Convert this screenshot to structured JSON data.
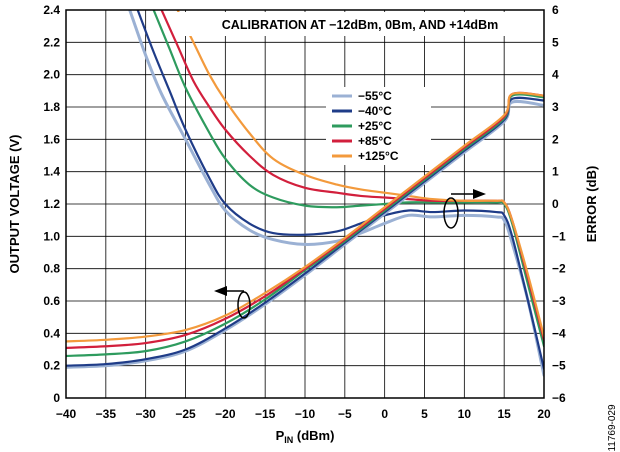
{
  "chart_data": {
    "type": "line",
    "title": "CALIBRATION AT −12dBm, 0Bm, AND +14dBm",
    "figure_id": "11769-029",
    "xlabel_main": "P",
    "xlabel_sub": "IN",
    "xlabel_unit": " (dBm)",
    "ylabel_left": "OUTPUT VOLTAGE (V)",
    "ylabel_right": "ERROR (dB)",
    "xlim": [
      -40,
      20
    ],
    "ylim_left": [
      0,
      2.4
    ],
    "ylim_right": [
      -6,
      6
    ],
    "xticks": [
      -40,
      -35,
      -30,
      -25,
      -20,
      -15,
      -10,
      -5,
      0,
      5,
      10,
      15,
      20
    ],
    "xtick_labels": [
      "−40",
      "−35",
      "−30",
      "−25",
      "−20",
      "−15",
      "−10",
      "−5",
      "0",
      "5",
      "10",
      "15",
      "20"
    ],
    "yticks_left": [
      0,
      0.2,
      0.4,
      0.6,
      0.8,
      1.0,
      1.2,
      1.4,
      1.6,
      1.8,
      2.0,
      2.2,
      2.4
    ],
    "ytick_left_labels": [
      "0",
      "0.2",
      "0.4",
      "0.6",
      "0.8",
      "1.0",
      "1.2",
      "1.4",
      "1.6",
      "1.8",
      "2.0",
      "2.2",
      "2.4"
    ],
    "yticks_right": [
      -6,
      -5,
      -4,
      -3,
      -2,
      -1,
      0,
      1,
      2,
      3,
      4,
      5,
      6
    ],
    "ytick_right_labels": [
      "−6",
      "−5",
      "−4",
      "−3",
      "−2",
      "−1",
      "0",
      "1",
      "2",
      "3",
      "4",
      "5",
      "6"
    ],
    "grid": true,
    "legend_position": "top-center",
    "series": [
      {
        "name": "−55°C",
        "color": "#9BB1D4",
        "vout": [
          [
            -40,
            0.19
          ],
          [
            -35,
            0.2
          ],
          [
            -30,
            0.23
          ],
          [
            -25,
            0.29
          ],
          [
            -20,
            0.42
          ],
          [
            -15,
            0.58
          ],
          [
            -10,
            0.76
          ],
          [
            -5,
            0.95
          ],
          [
            0,
            1.14
          ],
          [
            5,
            1.33
          ],
          [
            10,
            1.52
          ],
          [
            15,
            1.71
          ],
          [
            16,
            1.83
          ],
          [
            20,
            1.81
          ]
        ],
        "error": [
          [
            -32,
            6
          ],
          [
            -30,
            4.6
          ],
          [
            -28,
            3.4
          ],
          [
            -25,
            2.0
          ],
          [
            -22,
            0.6
          ],
          [
            -20,
            -0.2
          ],
          [
            -17,
            -0.8
          ],
          [
            -14,
            -1.1
          ],
          [
            -10,
            -1.25
          ],
          [
            -6,
            -1.15
          ],
          [
            -3,
            -0.9
          ],
          [
            0,
            -0.6
          ],
          [
            3,
            -0.35
          ],
          [
            6,
            -0.4
          ],
          [
            10,
            -0.35
          ],
          [
            14,
            -0.4
          ],
          [
            15,
            -0.5
          ],
          [
            16,
            -1.2
          ],
          [
            18,
            -3.0
          ],
          [
            20,
            -5.3
          ]
        ]
      },
      {
        "name": "−40°C",
        "color": "#1F3C88",
        "vout": [
          [
            -40,
            0.2
          ],
          [
            -35,
            0.21
          ],
          [
            -30,
            0.24
          ],
          [
            -25,
            0.3
          ],
          [
            -20,
            0.43
          ],
          [
            -15,
            0.59
          ],
          [
            -10,
            0.77
          ],
          [
            -5,
            0.96
          ],
          [
            0,
            1.15
          ],
          [
            5,
            1.34
          ],
          [
            10,
            1.53
          ],
          [
            15,
            1.72
          ],
          [
            16,
            1.85
          ],
          [
            20,
            1.84
          ]
        ],
        "error": [
          [
            -31,
            6
          ],
          [
            -29,
            4.7
          ],
          [
            -27,
            3.5
          ],
          [
            -25,
            2.3
          ],
          [
            -22,
            0.8
          ],
          [
            -20,
            0.0
          ],
          [
            -17,
            -0.6
          ],
          [
            -14,
            -0.9
          ],
          [
            -10,
            -0.95
          ],
          [
            -6,
            -0.85
          ],
          [
            -3,
            -0.6
          ],
          [
            0,
            -0.35
          ],
          [
            3,
            -0.2
          ],
          [
            6,
            -0.25
          ],
          [
            10,
            -0.2
          ],
          [
            14,
            -0.25
          ],
          [
            15,
            -0.35
          ],
          [
            16,
            -1.0
          ],
          [
            18,
            -3.0
          ],
          [
            20,
            -5.1
          ]
        ]
      },
      {
        "name": "+25°C",
        "color": "#2E9B5E",
        "vout": [
          [
            -40,
            0.26
          ],
          [
            -35,
            0.27
          ],
          [
            -30,
            0.29
          ],
          [
            -25,
            0.35
          ],
          [
            -20,
            0.46
          ],
          [
            -15,
            0.61
          ],
          [
            -10,
            0.79
          ],
          [
            -5,
            0.97
          ],
          [
            0,
            1.16
          ],
          [
            5,
            1.35
          ],
          [
            10,
            1.54
          ],
          [
            15,
            1.73
          ],
          [
            16,
            1.87
          ],
          [
            20,
            1.86
          ]
        ],
        "error": [
          [
            -29,
            6
          ],
          [
            -27,
            4.8
          ],
          [
            -25,
            3.6
          ],
          [
            -22,
            2.2
          ],
          [
            -20,
            1.4
          ],
          [
            -17,
            0.6
          ],
          [
            -14,
            0.2
          ],
          [
            -10,
            -0.05
          ],
          [
            -6,
            -0.1
          ],
          [
            -3,
            -0.05
          ],
          [
            0,
            0.0
          ],
          [
            3,
            0.05
          ],
          [
            6,
            0.05
          ],
          [
            10,
            0.05
          ],
          [
            14,
            0.05
          ],
          [
            15,
            0.0
          ],
          [
            16,
            -0.6
          ],
          [
            18,
            -2.5
          ],
          [
            20,
            -4.4
          ]
        ]
      },
      {
        "name": "+85°C",
        "color": "#D21F3C",
        "vout": [
          [
            -40,
            0.31
          ],
          [
            -35,
            0.32
          ],
          [
            -30,
            0.34
          ],
          [
            -25,
            0.39
          ],
          [
            -20,
            0.49
          ],
          [
            -15,
            0.63
          ],
          [
            -10,
            0.8
          ],
          [
            -5,
            0.98
          ],
          [
            0,
            1.17
          ],
          [
            5,
            1.36
          ],
          [
            10,
            1.55
          ],
          [
            15,
            1.74
          ],
          [
            16,
            1.88
          ],
          [
            20,
            1.87
          ]
        ],
        "error": [
          [
            -28,
            6
          ],
          [
            -26,
            4.9
          ],
          [
            -24,
            3.8
          ],
          [
            -22,
            3.0
          ],
          [
            -20,
            2.3
          ],
          [
            -17,
            1.5
          ],
          [
            -14,
            0.9
          ],
          [
            -10,
            0.5
          ],
          [
            -6,
            0.35
          ],
          [
            -3,
            0.25
          ],
          [
            0,
            0.2
          ],
          [
            3,
            0.15
          ],
          [
            6,
            0.1
          ],
          [
            10,
            0.1
          ],
          [
            14,
            0.1
          ],
          [
            15,
            0.05
          ],
          [
            16,
            -0.5
          ],
          [
            18,
            -2.3
          ],
          [
            20,
            -4.2
          ]
        ]
      },
      {
        "name": "+125°C",
        "color": "#F39A3C",
        "vout": [
          [
            -40,
            0.35
          ],
          [
            -35,
            0.36
          ],
          [
            -30,
            0.38
          ],
          [
            -25,
            0.42
          ],
          [
            -20,
            0.51
          ],
          [
            -15,
            0.65
          ],
          [
            -10,
            0.81
          ],
          [
            -5,
            0.99
          ],
          [
            0,
            1.18
          ],
          [
            5,
            1.37
          ],
          [
            10,
            1.56
          ],
          [
            15,
            1.75
          ],
          [
            16,
            1.88
          ],
          [
            20,
            1.87
          ]
        ],
        "error": [
          [
            -26,
            6
          ],
          [
            -24,
            5.0
          ],
          [
            -22,
            4.0
          ],
          [
            -20,
            3.2
          ],
          [
            -17,
            2.2
          ],
          [
            -14,
            1.4
          ],
          [
            -10,
            0.9
          ],
          [
            -6,
            0.6
          ],
          [
            -3,
            0.45
          ],
          [
            0,
            0.35
          ],
          [
            3,
            0.25
          ],
          [
            6,
            0.15
          ],
          [
            10,
            0.1
          ],
          [
            14,
            0.1
          ],
          [
            15,
            0.05
          ],
          [
            16,
            -0.5
          ],
          [
            18,
            -2.2
          ],
          [
            20,
            -4.1
          ]
        ]
      }
    ]
  }
}
